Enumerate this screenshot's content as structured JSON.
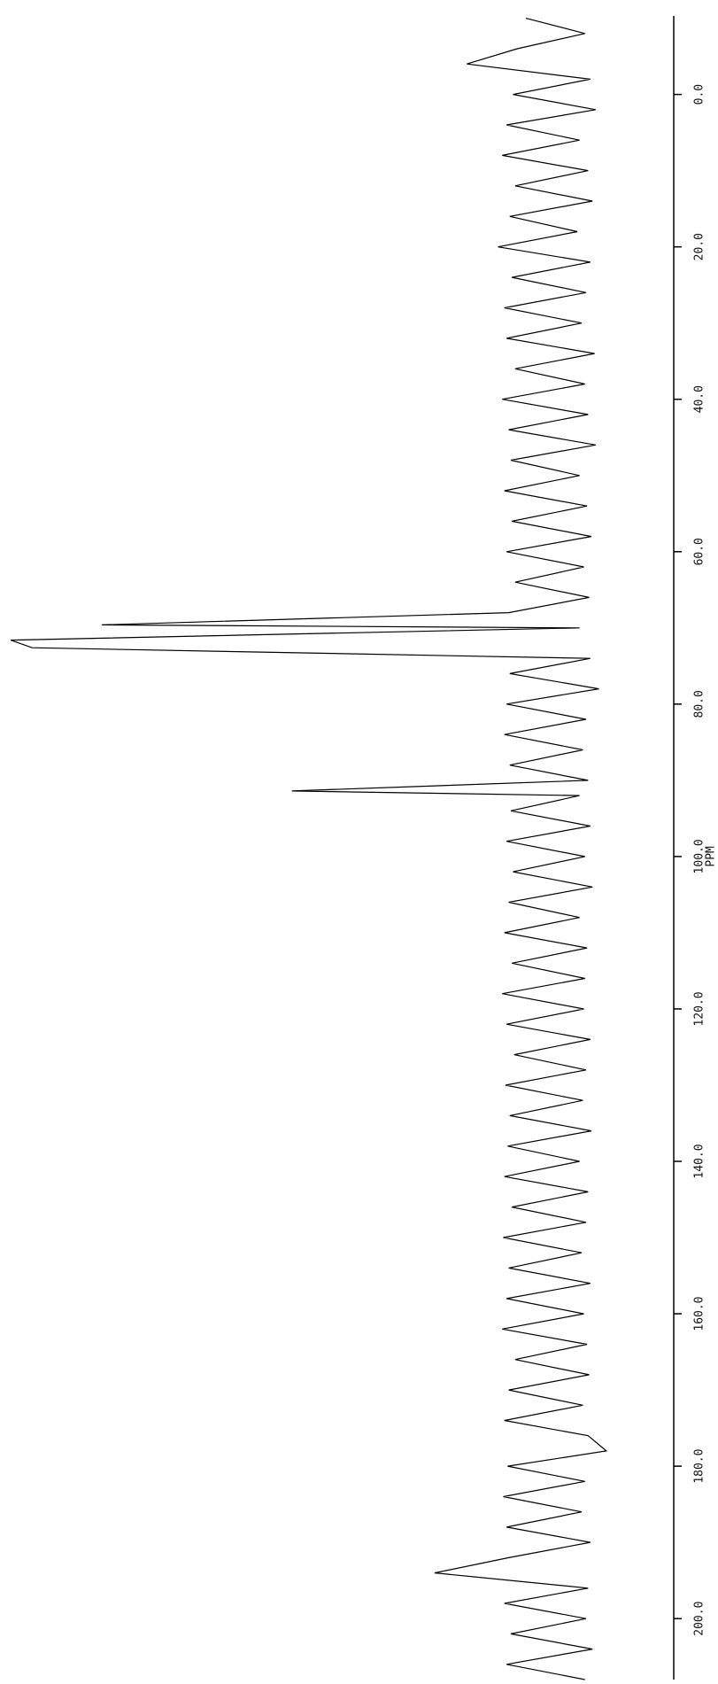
{
  "chart_data": {
    "type": "line",
    "xlabel": "PPM",
    "color": "#000000",
    "x": [
      -10,
      -8,
      -6,
      -4,
      -2,
      0,
      2,
      4,
      6,
      8,
      10,
      12,
      14,
      16,
      18,
      20,
      22,
      24,
      26,
      28,
      30,
      32,
      34,
      36,
      38,
      40,
      42,
      44,
      46,
      48,
      50,
      52,
      54,
      56,
      58,
      60,
      62,
      64,
      66,
      68,
      69.6,
      70,
      71.6,
      72.6,
      74,
      76,
      78,
      80,
      82,
      84,
      86,
      88,
      90,
      91.4,
      92,
      94,
      96,
      98,
      100,
      102,
      104,
      106,
      108,
      110,
      112,
      114,
      116,
      118,
      120,
      122,
      124,
      126,
      128,
      130,
      132,
      134,
      136,
      138,
      140,
      142,
      144,
      146,
      148,
      150,
      152,
      154,
      156,
      158,
      160,
      162,
      164,
      166,
      168,
      170,
      172,
      174,
      176,
      178,
      180,
      182,
      184,
      186,
      188,
      190,
      192,
      194,
      196,
      198,
      200,
      202,
      204,
      206,
      208
    ],
    "values": [
      20,
      -35,
      28,
      75,
      -40,
      32,
      -45,
      38,
      -30,
      42,
      -38,
      30,
      -42,
      35,
      -28,
      46,
      -40,
      33,
      -36,
      40,
      -32,
      38,
      -44,
      30,
      -35,
      42,
      -38,
      36,
      -45,
      34,
      -30,
      40,
      -37,
      33,
      -41,
      38,
      -34,
      30,
      -39,
      36,
      415,
      -30,
      500,
      480,
      -40,
      35,
      -48,
      38,
      -36,
      40,
      -33,
      35,
      -38,
      238,
      -30,
      34,
      -40,
      38,
      -35,
      32,
      -42,
      36,
      -30,
      40,
      -37,
      33,
      -35,
      42,
      -34,
      38,
      -40,
      31,
      -36,
      39,
      -33,
      35,
      -41,
      37,
      -30,
      40,
      -38,
      33,
      -36,
      41,
      -32,
      36,
      -40,
      38,
      -34,
      42,
      -37,
      30,
      -39,
      36,
      -33,
      40,
      -38,
      -55,
      37,
      -35,
      41,
      -32,
      38,
      -40,
      36,
      105,
      -38,
      40,
      -36,
      34,
      -42,
      38,
      -35
    ],
    "xlim": [
      -10.3,
      208
    ],
    "ylim": [
      -60,
      500
    ],
    "xticks": [
      {
        "value": 0,
        "label": "0.0"
      },
      {
        "value": 20,
        "label": "20.0"
      },
      {
        "value": 40,
        "label": "40.0"
      },
      {
        "value": 60,
        "label": "60.0"
      },
      {
        "value": 80,
        "label": "80.0"
      },
      {
        "value": 100,
        "label": "100.0"
      },
      {
        "value": 120,
        "label": "120.0"
      },
      {
        "value": 140,
        "label": "140.0"
      },
      {
        "value": 160,
        "label": "160.0"
      },
      {
        "value": 180,
        "label": "180.0"
      },
      {
        "value": 200,
        "label": "200.0"
      }
    ]
  }
}
